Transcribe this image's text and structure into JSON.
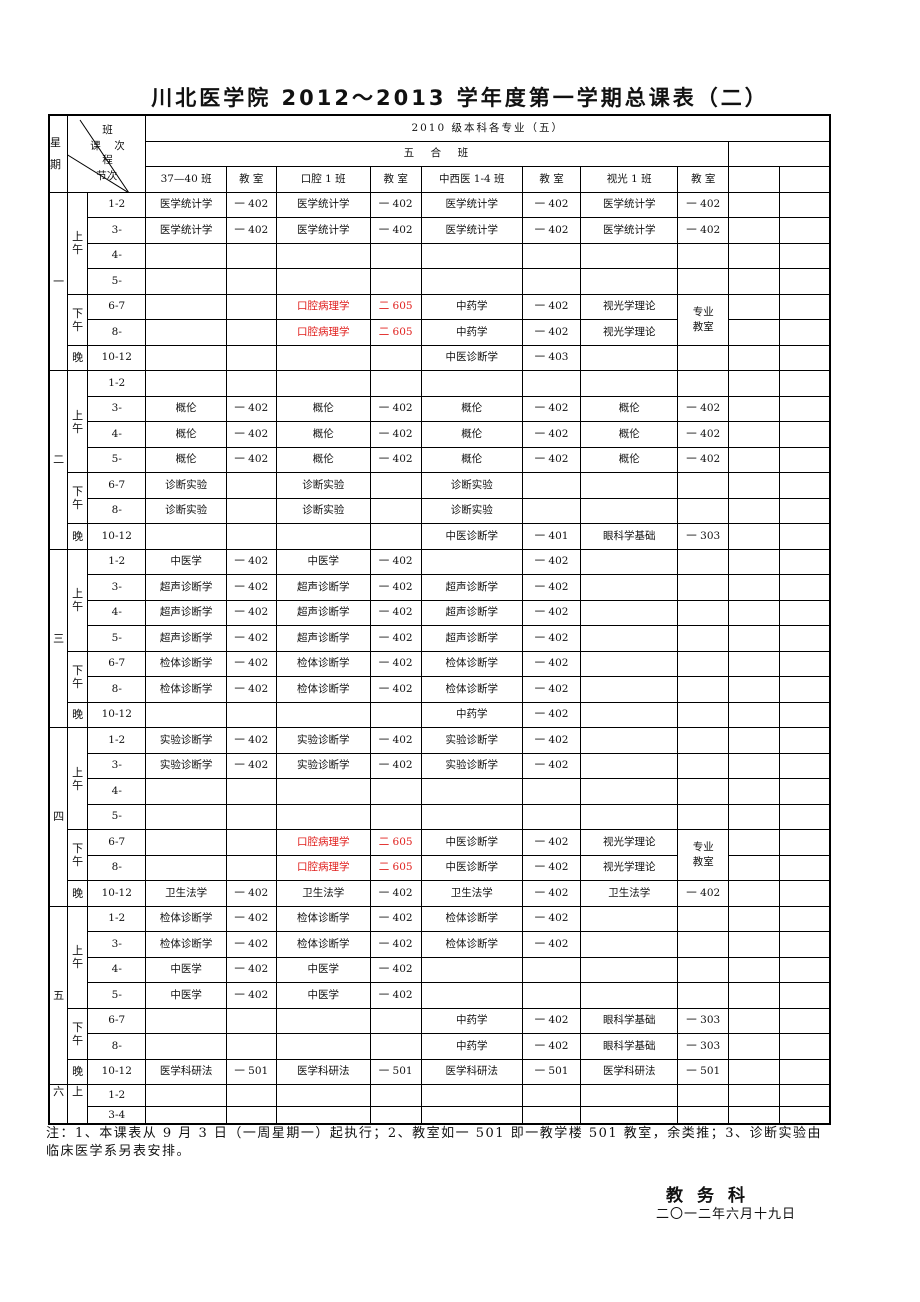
{
  "title": "川北医学院 2012～2013 学年度第一学期总课表（二）",
  "header": {
    "weekday_label_top": "星",
    "weekday_label_bottom": "期",
    "diag_class": "班",
    "diag_course": "课",
    "diag_times": "次",
    "diag_cheng": "程",
    "diag_period": "节次",
    "group": "2010 级本科各专业（五）",
    "subgroup": "五　合　班",
    "columns": [
      "37—40 班",
      "教 室",
      "口腔 1 班",
      "教 室",
      "中西医 1-4 班",
      "教 室",
      "视光 1 班",
      "教 室"
    ]
  },
  "highlight": {
    "color": "#e0201e",
    "texts": [
      "口腔病理学",
      "二 605"
    ]
  },
  "days": [
    {
      "day": "一",
      "sections": [
        {
          "label": "上午",
          "rows": [
            {
              "period": "1-2",
              "cells": [
                "医学统计学",
                "一 402",
                "医学统计学",
                "一 402",
                "医学统计学",
                "一 402",
                "医学统计学",
                "一 402"
              ]
            },
            {
              "period": "3-",
              "cells": [
                "医学统计学",
                "一 402",
                "医学统计学",
                "一 402",
                "医学统计学",
                "一 402",
                "医学统计学",
                "一 402"
              ]
            },
            {
              "period": "4-",
              "cells": [
                "",
                "",
                "",
                "",
                "",
                "",
                "",
                ""
              ]
            },
            {
              "period": "5-",
              "cells": [
                "",
                "",
                "",
                "",
                "",
                "",
                "",
                ""
              ]
            }
          ]
        },
        {
          "label": "下午",
          "rows": [
            {
              "period": "6-7",
              "cells": [
                "",
                "",
                "口腔病理学",
                "二 605",
                "中药学",
                "一 402",
                "视光学理论",
                "专业教室"
              ]
            },
            {
              "period": "8-",
              "cells": [
                "",
                "",
                "口腔病理学",
                "二 605",
                "中药学",
                "一 402",
                "视光学理论",
                null
              ]
            }
          ]
        },
        {
          "label": "晚",
          "rows": [
            {
              "period": "10-12",
              "cells": [
                "",
                "",
                "",
                "",
                "中医诊断学",
                "一 403",
                "",
                ""
              ]
            }
          ]
        }
      ]
    },
    {
      "day": "二",
      "sections": [
        {
          "label": "上午",
          "rows": [
            {
              "period": "1-2",
              "cells": [
                "",
                "",
                "",
                "",
                "",
                "",
                "",
                ""
              ]
            },
            {
              "period": "3-",
              "cells": [
                "概伦",
                "一 402",
                "概伦",
                "一 402",
                "概伦",
                "一 402",
                "概伦",
                "一 402"
              ]
            },
            {
              "period": "4-",
              "cells": [
                "概伦",
                "一 402",
                "概伦",
                "一 402",
                "概伦",
                "一 402",
                "概伦",
                "一 402"
              ]
            },
            {
              "period": "5-",
              "cells": [
                "概伦",
                "一 402",
                "概伦",
                "一 402",
                "概伦",
                "一 402",
                "概伦",
                "一 402"
              ]
            }
          ]
        },
        {
          "label": "下午",
          "rows": [
            {
              "period": "6-7",
              "cells": [
                "诊断实验",
                "",
                "诊断实验",
                "",
                "诊断实验",
                "",
                "",
                ""
              ]
            },
            {
              "period": "8-",
              "cells": [
                "诊断实验",
                "",
                "诊断实验",
                "",
                "诊断实验",
                "",
                "",
                ""
              ]
            }
          ]
        },
        {
          "label": "晚",
          "rows": [
            {
              "period": "10-12",
              "cells": [
                "",
                "",
                "",
                "",
                "中医诊断学",
                "一 401",
                "眼科学基础",
                "一 303"
              ]
            }
          ]
        }
      ]
    },
    {
      "day": "三",
      "sections": [
        {
          "label": "上午",
          "rows": [
            {
              "period": "1-2",
              "cells": [
                "中医学",
                "一 402",
                "中医学",
                "一 402",
                "",
                "一 402",
                "",
                ""
              ]
            },
            {
              "period": "3-",
              "cells": [
                "超声诊断学",
                "一 402",
                "超声诊断学",
                "一 402",
                "超声诊断学",
                "一 402",
                "",
                ""
              ]
            },
            {
              "period": "4-",
              "cells": [
                "超声诊断学",
                "一 402",
                "超声诊断学",
                "一 402",
                "超声诊断学",
                "一 402",
                "",
                ""
              ]
            },
            {
              "period": "5-",
              "cells": [
                "超声诊断学",
                "一 402",
                "超声诊断学",
                "一 402",
                "超声诊断学",
                "一 402",
                "",
                ""
              ]
            }
          ]
        },
        {
          "label": "下午",
          "rows": [
            {
              "period": "6-7",
              "cells": [
                "检体诊断学",
                "一 402",
                "检体诊断学",
                "一 402",
                "检体诊断学",
                "一 402",
                "",
                ""
              ]
            },
            {
              "period": "8-",
              "cells": [
                "检体诊断学",
                "一 402",
                "检体诊断学",
                "一 402",
                "检体诊断学",
                "一 402",
                "",
                ""
              ]
            }
          ]
        },
        {
          "label": "晚",
          "rows": [
            {
              "period": "10-12",
              "cells": [
                "",
                "",
                "",
                "",
                "中药学",
                "一 402",
                "",
                ""
              ]
            }
          ]
        }
      ]
    },
    {
      "day": "四",
      "sections": [
        {
          "label": "上午",
          "rows": [
            {
              "period": "1-2",
              "cells": [
                "实验诊断学",
                "一 402",
                "实验诊断学",
                "一 402",
                "实验诊断学",
                "一 402",
                "",
                ""
              ]
            },
            {
              "period": "3-",
              "cells": [
                "实验诊断学",
                "一 402",
                "实验诊断学",
                "一 402",
                "实验诊断学",
                "一 402",
                "",
                ""
              ]
            },
            {
              "period": "4-",
              "cells": [
                "",
                "",
                "",
                "",
                "",
                "",
                "",
                ""
              ]
            },
            {
              "period": "5-",
              "cells": [
                "",
                "",
                "",
                "",
                "",
                "",
                "",
                ""
              ]
            }
          ]
        },
        {
          "label": "下午",
          "rows": [
            {
              "period": "6-7",
              "cells": [
                "",
                "",
                "口腔病理学",
                "二 605",
                "中医诊断学",
                "一 402",
                "视光学理论",
                "专业教室"
              ]
            },
            {
              "period": "8-",
              "cells": [
                "",
                "",
                "口腔病理学",
                "二 605",
                "中医诊断学",
                "一 402",
                "视光学理论",
                null
              ]
            }
          ]
        },
        {
          "label": "晚",
          "rows": [
            {
              "period": "10-12",
              "cells": [
                "卫生法学",
                "一 402",
                "卫生法学",
                "一 402",
                "卫生法学",
                "一 402",
                "卫生法学",
                "一 402"
              ]
            }
          ]
        }
      ]
    },
    {
      "day": "五",
      "sections": [
        {
          "label": "上午",
          "rows": [
            {
              "period": "1-2",
              "cells": [
                "检体诊断学",
                "一 402",
                "检体诊断学",
                "一 402",
                "检体诊断学",
                "一 402",
                "",
                ""
              ]
            },
            {
              "period": "3-",
              "cells": [
                "检体诊断学",
                "一 402",
                "检体诊断学",
                "一 402",
                "检体诊断学",
                "一 402",
                "",
                ""
              ]
            },
            {
              "period": "4-",
              "cells": [
                "中医学",
                "一 402",
                "中医学",
                "一 402",
                "",
                "",
                "",
                ""
              ]
            },
            {
              "period": "5-",
              "cells": [
                "中医学",
                "一 402",
                "中医学",
                "一 402",
                "",
                "",
                "",
                ""
              ]
            }
          ]
        },
        {
          "label": "下午",
          "rows": [
            {
              "period": "6-7",
              "cells": [
                "",
                "",
                "",
                "",
                "中药学",
                "一 402",
                "眼科学基础",
                "一 303"
              ]
            },
            {
              "period": "8-",
              "cells": [
                "",
                "",
                "",
                "",
                "中药学",
                "一 402",
                "眼科学基础",
                "一 303"
              ]
            }
          ]
        },
        {
          "label": "晚",
          "rows": [
            {
              "period": "10-12",
              "cells": [
                "医学科研法",
                "一 501",
                "医学科研法",
                "一 501",
                "医学科研法",
                "一 501",
                "医学科研法",
                "一 501"
              ]
            }
          ]
        }
      ]
    },
    {
      "day": "六",
      "sections": [
        {
          "label": "上",
          "rows": [
            {
              "period": "1-2",
              "cells": [
                "",
                "",
                "",
                "",
                "",
                "",
                "",
                ""
              ]
            },
            {
              "period": "3-4",
              "cells": [
                "",
                "",
                "",
                "",
                "",
                "",
                "",
                ""
              ]
            }
          ]
        }
      ]
    }
  ],
  "note": "注：1、本课表从 9 月 3 日（一周星期一）起执行；2、教室如一 501 即一教学楼 501 教室，余类推；3、诊断实验由临床医学系另表安排。",
  "office": "教务科",
  "date": "二〇一二年六月十九日"
}
